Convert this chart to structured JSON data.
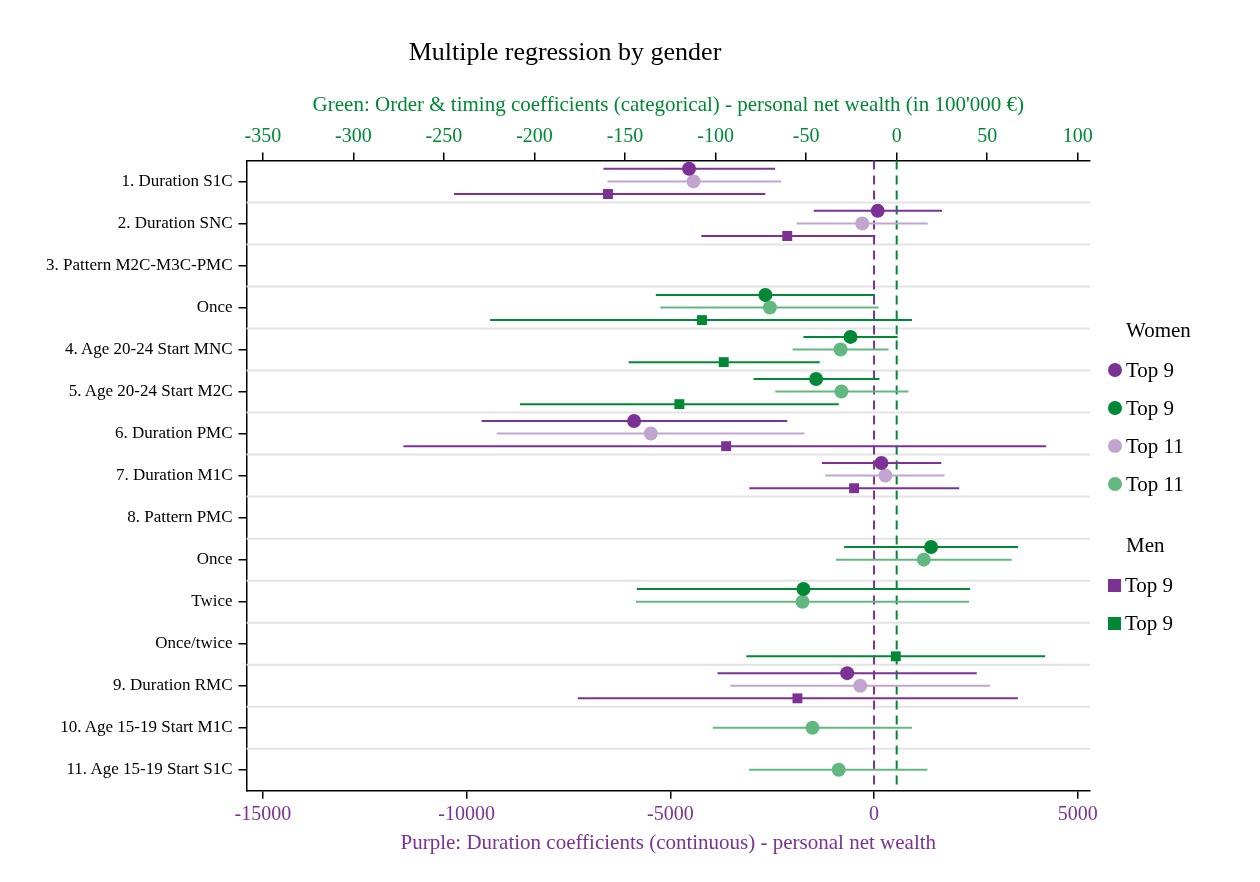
{
  "chart_data": {
    "type": "scatter",
    "orientation": "horizontal",
    "title": "Multiple regression by gender",
    "xlabel": "Purple: Duration coefficients (continuous) - personal net wealth",
    "x2label": "Green: Order & timing coefficients (categorical) - personal net wealth (in 100'000 €)",
    "categories": [
      "1. Duration S1C",
      "2. Duration SNC",
      "3. Pattern M2C-M3C-PMC",
      "Once",
      "4. Age 20-24 Start MNC",
      "5. Age 20-24 Start M2C",
      "6. Duration PMC",
      "7. Duration M1C",
      "8. Pattern PMC",
      "Once",
      "Twice",
      "Once/twice",
      "9. Duration RMC",
      "10. Age 15-19 Start M1C",
      "11. Age 15-19 Start S1C"
    ],
    "xlim": [
      -15400,
      5300
    ],
    "xticks": [
      -15000,
      -10000,
      -5000,
      0,
      5000
    ],
    "x2lim": [
      -359,
      106.75
    ],
    "x2ticks": [
      -350,
      -300,
      -250,
      -200,
      -150,
      -100,
      -50,
      0,
      50,
      100
    ],
    "legend_title": [
      "Women",
      "Men"
    ],
    "legend": "right",
    "grid": "y",
    "ref_lines": [
      {
        "axis": "x",
        "value": 0,
        "color": "#7b3294",
        "line_style": "dashed"
      },
      {
        "axis": "x2",
        "value": 0,
        "color": "#008837",
        "line_style": "dashed"
      }
    ],
    "series": [
      {
        "name": "Top 9",
        "color": "#7b3294",
        "marker": "circle",
        "values": [
          -4540,
          90,
          null,
          null,
          null,
          null,
          -5890,
          180,
          null,
          null,
          null,
          null,
          -660,
          null,
          null
        ],
        "errors": [
          [
            -6640,
            -2430
          ],
          [
            -1480,
            1670
          ],
          null,
          null,
          null,
          null,
          [
            -9630,
            -2130
          ],
          [
            -1280,
            1650
          ],
          null,
          null,
          null,
          null,
          [
            -3840,
            2520
          ],
          null,
          null
        ]
      },
      {
        "name": "Top 9",
        "color": "#008837",
        "marker": "circle",
        "axis": "x2",
        "values": [
          null,
          null,
          null,
          -72.5,
          -25.5,
          -44.5,
          null,
          null,
          null,
          19,
          -51.5,
          null,
          null,
          null,
          null
        ],
        "errors": [
          null,
          null,
          null,
          [
            -133,
            -12
          ],
          [
            -51.5,
            0.5
          ],
          [
            -79,
            -9.5
          ],
          null,
          null,
          null,
          [
            -29,
            67
          ],
          [
            -143.5,
            40.5
          ],
          null,
          null,
          null,
          null
        ]
      },
      {
        "name": "Top 11",
        "color": "#c2a5cf",
        "marker": "circle",
        "values": [
          -4430,
          -290,
          null,
          null,
          null,
          null,
          -5480,
          280,
          null,
          null,
          null,
          null,
          -340,
          null,
          null
        ],
        "errors": [
          [
            -6540,
            -2280
          ],
          [
            -1900,
            1320
          ],
          null,
          null,
          null,
          null,
          [
            -9260,
            -1710
          ],
          [
            -1200,
            1730
          ],
          null,
          null,
          null,
          null,
          [
            -3530,
            2850
          ],
          null,
          null
        ]
      },
      {
        "name": "Top 11",
        "color": "#63b882",
        "marker": "circle",
        "axis": "x2",
        "values": [
          null,
          null,
          null,
          -70,
          -31,
          -30.5,
          null,
          null,
          null,
          15,
          -52,
          null,
          null,
          -46.5,
          -32
        ],
        "errors": [
          null,
          null,
          null,
          [
            -130.5,
            -10
          ],
          [
            -57.5,
            -4.5
          ],
          [
            -67,
            6.5
          ],
          null,
          null,
          null,
          [
            -33.5,
            63.5
          ],
          [
            -144,
            40
          ],
          null,
          null,
          [
            -101.5,
            8.5
          ],
          [
            -81.5,
            17
          ]
        ]
      },
      {
        "name": "Top 9",
        "color": "#7b3294",
        "marker": "square",
        "values": [
          -6530,
          -2130,
          null,
          null,
          null,
          null,
          -3630,
          -490,
          null,
          null,
          null,
          null,
          -1880,
          null,
          null
        ],
        "errors": [
          [
            -10310,
            -2670
          ],
          [
            -4240,
            30
          ],
          null,
          null,
          null,
          null,
          [
            -11550,
            4220
          ],
          [
            -3060,
            2090
          ],
          null,
          null,
          null,
          null,
          [
            -7270,
            3530
          ],
          null,
          null
        ]
      },
      {
        "name": "Top 9",
        "color": "#008837",
        "marker": "square",
        "axis": "x2",
        "values": [
          null,
          null,
          null,
          -107.5,
          -95.5,
          -120,
          null,
          null,
          null,
          null,
          null,
          -0.5,
          null,
          null,
          null
        ],
        "errors": [
          null,
          null,
          null,
          [
            -224.5,
            8.5
          ],
          [
            -148,
            -42.5
          ],
          [
            -208,
            -32
          ],
          null,
          null,
          null,
          null,
          null,
          [
            -83,
            82
          ],
          null,
          null,
          null
        ]
      }
    ]
  }
}
